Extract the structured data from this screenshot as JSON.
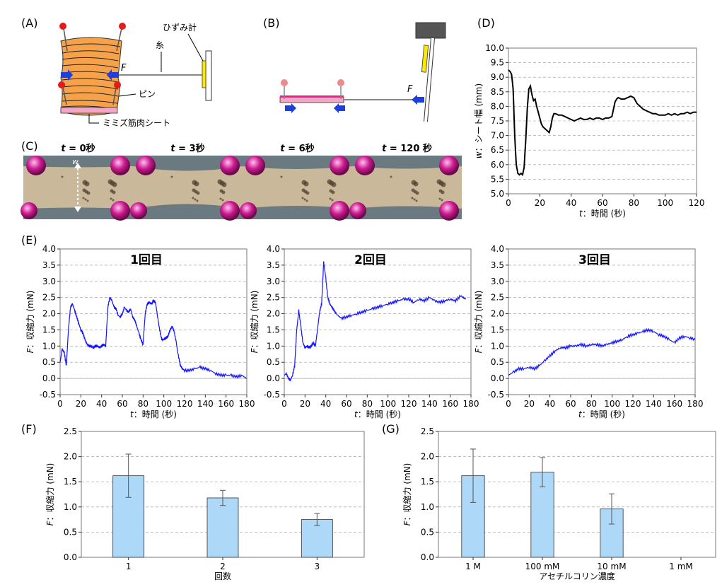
{
  "figure": {
    "panel_labels": [
      "(A)",
      "(B)",
      "(C)",
      "(D)",
      "(E)",
      "(F)",
      "(G)"
    ],
    "colors": {
      "muscle": "#f5a24a",
      "pin_head": "#e31b1b",
      "pin_head_light": "#f08a8a",
      "gauge": "#ffe800",
      "arrow": "#1d3fe0",
      "sheet_pink": "#f080c0",
      "trace_black": "#000000",
      "trace_blue": "#1414ff",
      "bar_fill": "#add8f7",
      "photo_bg": "#c9b89a",
      "magnet": "#cc1a8f"
    }
  },
  "panel_a": {
    "label_gauge": "ひずみ計",
    "label_thread": "糸",
    "label_force": "F",
    "label_pin": "ピン",
    "label_sheet": "ミミズ筋肉シート"
  },
  "panel_b": {
    "label_force": "F"
  },
  "panel_c": {
    "frames": [
      {
        "t_var": "t",
        "eq": " = ",
        "value": "0秒"
      },
      {
        "t_var": "t",
        "eq": " = ",
        "value": "3秒"
      },
      {
        "t_var": "t",
        "eq": " = ",
        "value": "6秒"
      },
      {
        "t_var": "t",
        "eq": " = ",
        "value": "120 秒"
      }
    ],
    "width_label": "w"
  },
  "chart_data": [
    {
      "id": "D",
      "type": "line",
      "xlabel_var": "t",
      "xlabel_text": "：時間 (秒)",
      "ylabel_var": "w",
      "ylabel_text": "：シート幅 (mm)",
      "xlim": [
        0,
        120
      ],
      "ylim": [
        5.0,
        10.0
      ],
      "xticks": [
        0,
        20,
        40,
        60,
        80,
        100,
        120
      ],
      "yticks": [
        5.0,
        5.5,
        6.0,
        6.5,
        7.0,
        7.5,
        8.0,
        8.5,
        9.0,
        9.5,
        10.0
      ],
      "ytick_labels": [
        "5.0",
        "5.5",
        "6.0",
        "6.5",
        "7.0",
        "7.5",
        "8.0",
        "8.5",
        "9.0",
        "9.5",
        "10.0"
      ],
      "grid": true,
      "series": [
        {
          "color": "#000000",
          "x": [
            0,
            1,
            2,
            3,
            4,
            5,
            6,
            7,
            8,
            9,
            10,
            11,
            12,
            13,
            14,
            15,
            16,
            17,
            18,
            19,
            20,
            21,
            22,
            23,
            24,
            25,
            26,
            27,
            28,
            29,
            30,
            32,
            34,
            36,
            38,
            40,
            42,
            44,
            46,
            48,
            50,
            52,
            54,
            56,
            58,
            60,
            62,
            64,
            66,
            67,
            68,
            69,
            70,
            72,
            74,
            76,
            78,
            80,
            82,
            84,
            86,
            88,
            90,
            92,
            94,
            96,
            98,
            100,
            102,
            104,
            106,
            108,
            110,
            112,
            114,
            116,
            118,
            120
          ],
          "y": [
            9.25,
            9.2,
            9.1,
            8.6,
            7.0,
            6.0,
            5.7,
            5.65,
            5.7,
            5.65,
            5.9,
            6.8,
            7.9,
            8.6,
            8.7,
            8.4,
            8.2,
            8.25,
            8.0,
            7.8,
            7.6,
            7.4,
            7.3,
            7.25,
            7.2,
            7.15,
            7.1,
            7.3,
            7.6,
            7.75,
            7.75,
            7.7,
            7.7,
            7.65,
            7.6,
            7.55,
            7.5,
            7.55,
            7.6,
            7.55,
            7.55,
            7.6,
            7.55,
            7.6,
            7.6,
            7.55,
            7.6,
            7.6,
            7.65,
            7.9,
            8.15,
            8.25,
            8.3,
            8.25,
            8.25,
            8.3,
            8.35,
            8.3,
            8.1,
            8.0,
            7.9,
            7.85,
            7.8,
            7.75,
            7.75,
            7.7,
            7.7,
            7.7,
            7.75,
            7.7,
            7.75,
            7.7,
            7.75,
            7.75,
            7.8,
            7.75,
            7.8,
            7.8
          ]
        }
      ]
    },
    {
      "id": "E1",
      "type": "line",
      "title": "1回目",
      "xlabel_var": "t",
      "xlabel_text": "：時間 (秒)",
      "ylabel_var": "F",
      "ylabel_text": "：収縮力 (mN)",
      "xlim": [
        0,
        180
      ],
      "ylim": [
        -0.5,
        4.0
      ],
      "xticks": [
        0,
        20,
        40,
        60,
        80,
        100,
        120,
        140,
        160,
        180
      ],
      "yticks": [
        -0.5,
        0.0,
        0.5,
        1.0,
        1.5,
        2.0,
        2.5,
        3.0,
        3.5,
        4.0
      ],
      "ytick_labels": [
        "-0.5",
        "0.0",
        "0.5",
        "1.0",
        "1.5",
        "2.0",
        "2.5",
        "3.0",
        "3.5",
        "4.0"
      ],
      "grid": true,
      "series": [
        {
          "color": "#1414ff",
          "x": [
            0,
            2,
            4,
            6,
            8,
            10,
            12,
            14,
            16,
            18,
            20,
            22,
            24,
            26,
            28,
            30,
            32,
            34,
            36,
            38,
            40,
            42,
            44,
            46,
            48,
            50,
            52,
            54,
            56,
            58,
            60,
            62,
            64,
            66,
            68,
            70,
            72,
            74,
            76,
            78,
            80,
            82,
            84,
            86,
            88,
            90,
            92,
            94,
            96,
            98,
            100,
            102,
            104,
            106,
            108,
            110,
            112,
            114,
            116,
            118,
            120,
            125,
            130,
            135,
            140,
            145,
            150,
            155,
            160,
            165,
            170,
            175,
            180
          ],
          "y": [
            0.5,
            0.9,
            0.8,
            0.4,
            1.5,
            2.2,
            2.3,
            2.1,
            1.9,
            1.7,
            1.5,
            1.4,
            1.2,
            1.05,
            1.0,
            1.0,
            0.95,
            1.0,
            1.0,
            0.95,
            1.0,
            1.05,
            1.0,
            2.2,
            2.5,
            2.4,
            2.2,
            2.15,
            1.95,
            1.9,
            2.0,
            2.2,
            2.1,
            2.05,
            2.15,
            1.9,
            1.8,
            1.6,
            1.4,
            1.2,
            1.05,
            2.0,
            2.3,
            2.35,
            2.3,
            2.4,
            2.35,
            1.9,
            1.5,
            1.2,
            1.2,
            1.25,
            1.3,
            1.5,
            1.6,
            1.45,
            1.1,
            0.7,
            0.4,
            0.3,
            0.25,
            0.25,
            0.3,
            0.35,
            0.3,
            0.25,
            0.15,
            0.1,
            0.1,
            0.1,
            0.05,
            0.1,
            0.0
          ]
        }
      ]
    },
    {
      "id": "E2",
      "type": "line",
      "title": "2回目",
      "xlabel_var": "t",
      "xlabel_text": "：時間 (秒)",
      "ylabel_var": "F",
      "ylabel_text": "：収縮力 (mN)",
      "xlim": [
        0,
        180
      ],
      "ylim": [
        -0.5,
        4.0
      ],
      "xticks": [
        0,
        20,
        40,
        60,
        80,
        100,
        120,
        140,
        160,
        180
      ],
      "yticks": [
        -0.5,
        0.0,
        0.5,
        1.0,
        1.5,
        2.0,
        2.5,
        3.0,
        3.5,
        4.0
      ],
      "ytick_labels": [
        "-0.5",
        "0.0",
        "0.5",
        "1.0",
        "1.5",
        "2.0",
        "2.5",
        "3.0",
        "3.5",
        "4.0"
      ],
      "grid": true,
      "series": [
        {
          "color": "#1414ff",
          "x": [
            0,
            2,
            4,
            6,
            8,
            10,
            12,
            14,
            16,
            18,
            20,
            22,
            24,
            26,
            28,
            30,
            32,
            34,
            36,
            38,
            40,
            42,
            44,
            46,
            48,
            50,
            55,
            60,
            65,
            70,
            75,
            80,
            85,
            90,
            95,
            100,
            105,
            110,
            115,
            120,
            125,
            130,
            135,
            140,
            145,
            150,
            155,
            160,
            165,
            170,
            175
          ],
          "y": [
            0.1,
            0.15,
            0.0,
            -0.05,
            0.1,
            0.4,
            1.5,
            2.1,
            1.6,
            1.1,
            0.95,
            1.0,
            0.95,
            1.0,
            1.1,
            1.0,
            1.5,
            2.05,
            2.3,
            3.6,
            3.1,
            2.5,
            2.3,
            2.2,
            2.1,
            2.0,
            1.85,
            1.9,
            1.95,
            2.0,
            2.05,
            2.1,
            2.15,
            2.2,
            2.25,
            2.3,
            2.35,
            2.4,
            2.45,
            2.45,
            2.35,
            2.45,
            2.4,
            2.5,
            2.4,
            2.35,
            2.4,
            2.45,
            2.4,
            2.55,
            2.45
          ]
        }
      ]
    },
    {
      "id": "E3",
      "type": "line",
      "title": "3回目",
      "xlabel_var": "t",
      "xlabel_text": "：時間 (秒)",
      "ylabel_var": "F",
      "ylabel_text": "：収縮力 (mN)",
      "xlim": [
        0,
        180
      ],
      "ylim": [
        -0.5,
        4.0
      ],
      "xticks": [
        0,
        20,
        40,
        60,
        80,
        100,
        120,
        140,
        160,
        180
      ],
      "yticks": [
        -0.5,
        0.0,
        0.5,
        1.0,
        1.5,
        2.0,
        2.5,
        3.0,
        3.5,
        4.0
      ],
      "ytick_labels": [
        "-0.5",
        "0.0",
        "0.5",
        "1.0",
        "1.5",
        "2.0",
        "2.5",
        "3.0",
        "3.5",
        "4.0"
      ],
      "grid": true,
      "series": [
        {
          "color": "#1414ff",
          "x": [
            0,
            5,
            10,
            15,
            20,
            25,
            30,
            35,
            40,
            45,
            50,
            55,
            60,
            65,
            70,
            75,
            80,
            85,
            90,
            95,
            100,
            105,
            110,
            115,
            120,
            125,
            130,
            135,
            140,
            145,
            150,
            155,
            160,
            165,
            170,
            175,
            180
          ],
          "y": [
            0.1,
            0.2,
            0.3,
            0.3,
            0.35,
            0.3,
            0.4,
            0.55,
            0.7,
            0.85,
            0.95,
            0.95,
            1.0,
            1.0,
            1.05,
            1.0,
            1.05,
            1.05,
            1.0,
            1.05,
            1.1,
            1.15,
            1.2,
            1.3,
            1.35,
            1.4,
            1.45,
            1.5,
            1.45,
            1.35,
            1.3,
            1.2,
            1.1,
            1.25,
            1.3,
            1.25,
            1.2
          ]
        }
      ]
    },
    {
      "id": "F",
      "type": "bar",
      "categories": [
        "1",
        "2",
        "3"
      ],
      "values": [
        1.62,
        1.18,
        0.75
      ],
      "errors": [
        0.43,
        0.15,
        0.12
      ],
      "xlabel": "回数",
      "ylabel_var": "F",
      "ylabel_text": "：収縮力 (mN)",
      "ylim": [
        0.0,
        2.5
      ],
      "yticks": [
        0.0,
        0.5,
        1.0,
        1.5,
        2.0,
        2.5
      ],
      "ytick_labels": [
        "0.0",
        "0.5",
        "1.0",
        "1.5",
        "2.0",
        "2.5"
      ],
      "grid": true
    },
    {
      "id": "G",
      "type": "bar",
      "categories": [
        "1 M",
        "100 mM",
        "10 mM",
        "1 mM"
      ],
      "values": [
        1.62,
        1.69,
        0.96,
        0.0
      ],
      "errors": [
        0.53,
        0.29,
        0.3,
        0.0
      ],
      "xlabel": "アセチルコリン濃度",
      "ylabel_var": "F",
      "ylabel_text": "：収縮力 (mN)",
      "ylim": [
        0.0,
        2.5
      ],
      "yticks": [
        0.0,
        0.5,
        1.0,
        1.5,
        2.0,
        2.5
      ],
      "ytick_labels": [
        "0.0",
        "0.5",
        "1.0",
        "1.5",
        "2.0",
        "2.5"
      ],
      "grid": true
    }
  ]
}
